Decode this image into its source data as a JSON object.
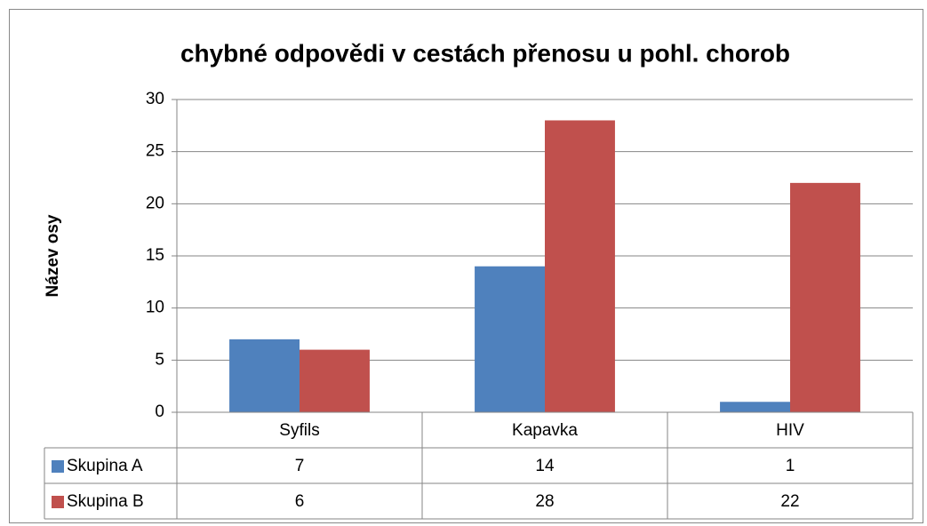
{
  "chart_data": {
    "type": "bar",
    "title": "chybné odpovědi v cestách přenosu u pohl. chorob",
    "y_axis_label": "Název osy",
    "categories": [
      "Syfils",
      "Kapavka",
      "HIV"
    ],
    "series": [
      {
        "name": "Skupina A",
        "color": "#4f81bd",
        "values": [
          7,
          14,
          1
        ]
      },
      {
        "name": "Skupina B",
        "color": "#c0504d",
        "values": [
          6,
          28,
          22
        ]
      }
    ],
    "ylim": [
      0,
      30
    ],
    "yticks": [
      0,
      5,
      10,
      15,
      20,
      25,
      30
    ],
    "grid": true,
    "data_table": true
  }
}
